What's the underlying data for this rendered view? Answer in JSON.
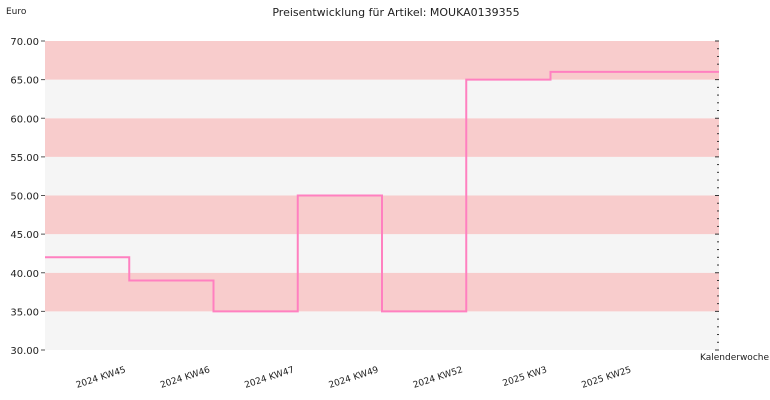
{
  "chart_data": {
    "type": "line",
    "title": "Preisentwicklung für Artikel: MOUKA0139355",
    "ylabel": "Euro",
    "xlabel": "Kalenderwoche",
    "ylim": [
      30,
      70
    ],
    "y_ticks": [
      "30.00",
      "35.00",
      "40.00",
      "45.00",
      "50.00",
      "55.00",
      "60.00",
      "65.00",
      "70.00"
    ],
    "categories": [
      "2024 KW45",
      "2024 KW46",
      "2024 KW47",
      "2024 KW49",
      "2024 KW52",
      "2025 KW3",
      "2025 KW25"
    ],
    "series": [
      {
        "values": [
          42,
          39,
          35,
          50,
          35,
          65,
          66
        ]
      }
    ],
    "step": true,
    "colors": {
      "line": "#ff80c0",
      "band_dark": "#f8cccc",
      "band_light": "#f5f5f5"
    }
  }
}
